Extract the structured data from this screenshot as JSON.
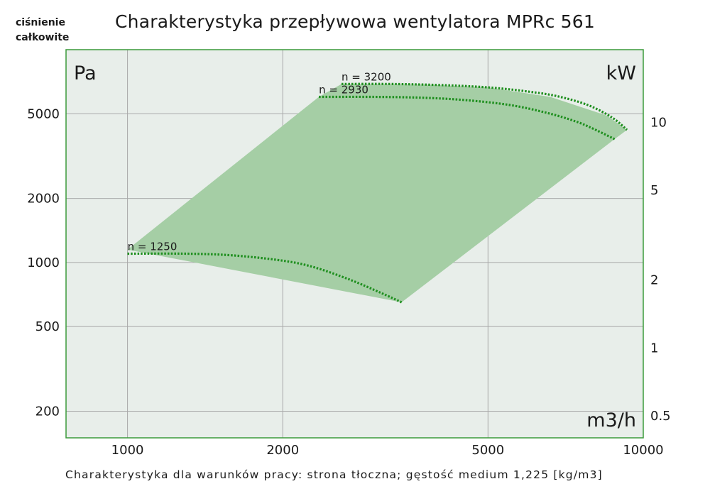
{
  "chart_data": {
    "type": "area",
    "title": "Charakterystyka przepływowa wentylatora MPRc 561",
    "y_axis_title_lines": [
      "ciśnienie",
      "całkowite"
    ],
    "xlabel": "m3/h",
    "ylabel": "Pa",
    "y2label": "kW",
    "x_scale": "log",
    "y_scale": "log",
    "xlim": [
      760,
      10000
    ],
    "ylim": [
      150,
      10000
    ],
    "y2lim": [
      0.4,
      21
    ],
    "x_ticks": [
      1000,
      2000,
      5000,
      10000
    ],
    "x_tick_labels": [
      "1000",
      "2000",
      "5000",
      "10000"
    ],
    "y_ticks": [
      200,
      500,
      1000,
      2000,
      5000
    ],
    "y_tick_labels": [
      "200",
      "500",
      "1000",
      "2000",
      "5000"
    ],
    "y2_ticks": [
      0.5,
      1,
      2,
      5,
      10
    ],
    "y2_tick_labels": [
      "0.5",
      "1",
      "2",
      "5",
      "10"
    ],
    "grid": true,
    "operating_area": [
      [
        1000,
        1150
      ],
      [
        2350,
        6000
      ],
      [
        2600,
        6900
      ],
      [
        3800,
        6850
      ],
      [
        5000,
        6650
      ],
      [
        6600,
        6000
      ],
      [
        8500,
        4900
      ],
      [
        9300,
        4200
      ],
      [
        8800,
        3800
      ],
      [
        3400,
        650
      ]
    ],
    "series": [
      {
        "name": "n = 1250",
        "label": "n = 1250",
        "x": [
          1000,
          1300,
          1600,
          2000,
          2300,
          2700,
          3100,
          3400
        ],
        "y": [
          1100,
          1100,
          1080,
          1020,
          950,
          830,
          720,
          650
        ]
      },
      {
        "name": "n = 2930",
        "label": "n = 2930",
        "x": [
          2350,
          3000,
          3700,
          4500,
          5500,
          6500,
          7400,
          8000,
          8800
        ],
        "y": [
          6000,
          6000,
          5950,
          5800,
          5500,
          5050,
          4600,
          4250,
          3800
        ]
      },
      {
        "name": "n = 3200",
        "label": "n = 3200",
        "x": [
          2600,
          3200,
          3800,
          4500,
          5200,
          6000,
          6800,
          7800,
          8700,
          9300
        ],
        "y": [
          6900,
          6900,
          6850,
          6750,
          6600,
          6350,
          6050,
          5500,
          4800,
          4200
        ]
      }
    ],
    "footnote": "Charakterystyka dla warunków pracy: strona tłoczna; gęstość medium 1,225 [kg/m3]"
  },
  "colors": {
    "plot_background": "#e8eeea",
    "plot_border": "#3a9a3a",
    "grid": "#a9a9a9",
    "area_fill": "#a5cea5",
    "curve": "#1f8f1f"
  }
}
